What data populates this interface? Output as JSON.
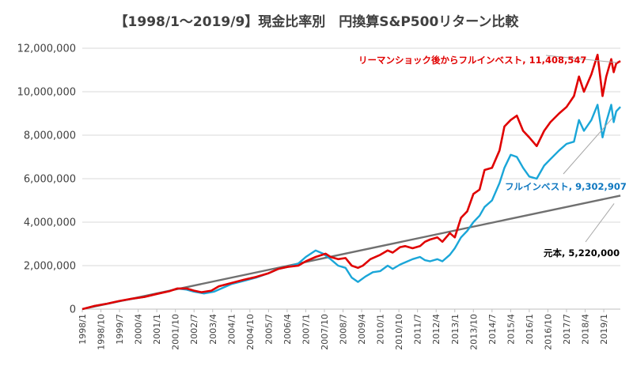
{
  "chart_data": {
    "type": "line",
    "title": "【1998/1～2019/9】現金比率別　円換算S&P500リターン比較",
    "xlabel": "",
    "ylabel": "",
    "ylim": [
      0,
      12000000
    ],
    "yticks": [
      0,
      2000000,
      4000000,
      6000000,
      8000000,
      10000000,
      12000000
    ],
    "ytick_labels": [
      "0",
      "2,000,000",
      "4,000,000",
      "6,000,000",
      "8,000,000",
      "10,000,000",
      "12,000,000"
    ],
    "xlim": [
      1998.0,
      2019.667
    ],
    "xtick_labels": [
      "1998/1",
      "1998/10",
      "1999/7",
      "2000/4",
      "2001/1",
      "2001/10",
      "2002/7",
      "2003/4",
      "2004/1",
      "2004/10",
      "2005/7",
      "2006/4",
      "2007/1",
      "2007/10",
      "2008/7",
      "2009/4",
      "2010/1",
      "2010/10",
      "2011/7",
      "2012/4",
      "2013/1",
      "2013/10",
      "2014/7",
      "2015/4",
      "2016/1",
      "2016/10",
      "2017/7",
      "2018/4",
      "2019/1"
    ],
    "grid": "horizontal",
    "series": [
      {
        "color": "#e00000",
        "points": [
          [
            1998.0,
            0
          ],
          [
            1998.5,
            150000
          ],
          [
            1999.0,
            250000
          ],
          [
            1999.5,
            380000
          ],
          [
            2000.0,
            480000
          ],
          [
            2000.5,
            560000
          ],
          [
            2001.0,
            700000
          ],
          [
            2001.5,
            820000
          ],
          [
            2001.83,
            950000
          ],
          [
            2002.2,
            950000
          ],
          [
            2002.5,
            850000
          ],
          [
            2002.8,
            780000
          ],
          [
            2003.2,
            850000
          ],
          [
            2003.5,
            1050000
          ],
          [
            2004.0,
            1200000
          ],
          [
            2004.5,
            1350000
          ],
          [
            2005.0,
            1480000
          ],
          [
            2005.5,
            1650000
          ],
          [
            2005.9,
            1850000
          ],
          [
            2006.3,
            1950000
          ],
          [
            2006.7,
            2000000
          ],
          [
            2007.0,
            2200000
          ],
          [
            2007.4,
            2400000
          ],
          [
            2007.8,
            2550000
          ],
          [
            2008.0,
            2400000
          ],
          [
            2008.3,
            2300000
          ],
          [
            2008.6,
            2350000
          ],
          [
            2008.85,
            2000000
          ],
          [
            2009.1,
            1900000
          ],
          [
            2009.3,
            2000000
          ],
          [
            2009.6,
            2300000
          ],
          [
            2010.0,
            2500000
          ],
          [
            2010.3,
            2700000
          ],
          [
            2010.5,
            2600000
          ],
          [
            2010.8,
            2850000
          ],
          [
            2011.0,
            2900000
          ],
          [
            2011.3,
            2800000
          ],
          [
            2011.6,
            2900000
          ],
          [
            2011.8,
            3100000
          ],
          [
            2012.0,
            3200000
          ],
          [
            2012.3,
            3300000
          ],
          [
            2012.5,
            3100000
          ],
          [
            2012.8,
            3500000
          ],
          [
            2013.0,
            3300000
          ],
          [
            2013.25,
            4200000
          ],
          [
            2013.5,
            4500000
          ],
          [
            2013.75,
            5300000
          ],
          [
            2014.0,
            5500000
          ],
          [
            2014.2,
            6400000
          ],
          [
            2014.5,
            6500000
          ],
          [
            2014.8,
            7300000
          ],
          [
            2015.0,
            8400000
          ],
          [
            2015.25,
            8700000
          ],
          [
            2015.5,
            8900000
          ],
          [
            2015.75,
            8200000
          ],
          [
            2016.0,
            7900000
          ],
          [
            2016.3,
            7500000
          ],
          [
            2016.6,
            8200000
          ],
          [
            2016.85,
            8600000
          ],
          [
            2017.2,
            9000000
          ],
          [
            2017.5,
            9300000
          ],
          [
            2017.8,
            9800000
          ],
          [
            2018.0,
            10700000
          ],
          [
            2018.2,
            10000000
          ],
          [
            2018.5,
            10800000
          ],
          [
            2018.75,
            11700000
          ],
          [
            2018.95,
            9800000
          ],
          [
            2019.1,
            10700000
          ],
          [
            2019.3,
            11500000
          ],
          [
            2019.4,
            10900000
          ],
          [
            2019.5,
            11300000
          ],
          [
            2019.67,
            11408547
          ]
        ]
      },
      {
        "color": "#1aa6d8",
        "points": [
          [
            1998.0,
            0
          ],
          [
            1998.5,
            150000
          ],
          [
            1999.0,
            250000
          ],
          [
            1999.5,
            370000
          ],
          [
            2000.0,
            470000
          ],
          [
            2000.5,
            560000
          ],
          [
            2001.0,
            700000
          ],
          [
            2001.4,
            800000
          ],
          [
            2001.83,
            950000
          ],
          [
            2002.2,
            900000
          ],
          [
            2002.5,
            800000
          ],
          [
            2002.9,
            720000
          ],
          [
            2003.3,
            800000
          ],
          [
            2003.7,
            1000000
          ],
          [
            2004.0,
            1150000
          ],
          [
            2004.5,
            1300000
          ],
          [
            2005.0,
            1450000
          ],
          [
            2005.5,
            1650000
          ],
          [
            2005.9,
            1850000
          ],
          [
            2006.3,
            1950000
          ],
          [
            2006.7,
            2100000
          ],
          [
            2007.0,
            2400000
          ],
          [
            2007.4,
            2700000
          ],
          [
            2007.7,
            2550000
          ],
          [
            2008.0,
            2300000
          ],
          [
            2008.3,
            2000000
          ],
          [
            2008.6,
            1900000
          ],
          [
            2008.85,
            1450000
          ],
          [
            2009.1,
            1250000
          ],
          [
            2009.4,
            1500000
          ],
          [
            2009.7,
            1700000
          ],
          [
            2010.0,
            1750000
          ],
          [
            2010.3,
            2000000
          ],
          [
            2010.5,
            1850000
          ],
          [
            2010.8,
            2050000
          ],
          [
            2011.0,
            2150000
          ],
          [
            2011.3,
            2300000
          ],
          [
            2011.6,
            2400000
          ],
          [
            2011.8,
            2250000
          ],
          [
            2012.0,
            2200000
          ],
          [
            2012.3,
            2300000
          ],
          [
            2012.5,
            2200000
          ],
          [
            2012.8,
            2500000
          ],
          [
            2013.0,
            2800000
          ],
          [
            2013.25,
            3300000
          ],
          [
            2013.5,
            3600000
          ],
          [
            2013.75,
            4000000
          ],
          [
            2014.0,
            4300000
          ],
          [
            2014.2,
            4700000
          ],
          [
            2014.5,
            5000000
          ],
          [
            2014.8,
            5800000
          ],
          [
            2015.0,
            6500000
          ],
          [
            2015.25,
            7100000
          ],
          [
            2015.5,
            7000000
          ],
          [
            2015.75,
            6500000
          ],
          [
            2016.0,
            6100000
          ],
          [
            2016.3,
            6000000
          ],
          [
            2016.6,
            6600000
          ],
          [
            2016.85,
            6900000
          ],
          [
            2017.2,
            7300000
          ],
          [
            2017.5,
            7600000
          ],
          [
            2017.8,
            7700000
          ],
          [
            2018.0,
            8700000
          ],
          [
            2018.2,
            8200000
          ],
          [
            2018.5,
            8700000
          ],
          [
            2018.75,
            9400000
          ],
          [
            2018.95,
            7900000
          ],
          [
            2019.1,
            8600000
          ],
          [
            2019.3,
            9400000
          ],
          [
            2019.4,
            8600000
          ],
          [
            2019.5,
            9100000
          ],
          [
            2019.67,
            9302907
          ]
        ]
      },
      {
        "color": "#707070",
        "points": [
          [
            1998.0,
            0
          ],
          [
            2019.67,
            5220000
          ]
        ]
      }
    ],
    "annotations": [
      {
        "text": "リーマンショック後からフルインベスト, 11,408,547",
        "color": "#e00000"
      },
      {
        "text": "フルインベスト, 9,302,907",
        "color": "#0f78c0"
      },
      {
        "text": "元本, 5,220,000",
        "color": "#000000"
      }
    ]
  }
}
